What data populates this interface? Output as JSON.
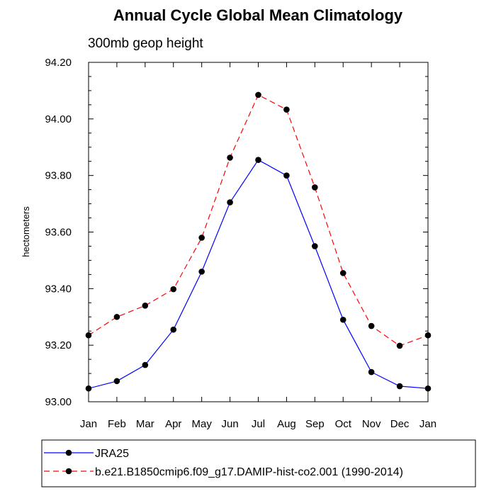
{
  "chart_data": {
    "type": "line",
    "title": "Annual Cycle Global Mean Climatology",
    "subtitle": "300mb geop height",
    "xlabel": "",
    "ylabel": "hectometers",
    "categories": [
      "Jan",
      "Feb",
      "Mar",
      "Apr",
      "May",
      "Jun",
      "Jul",
      "Aug",
      "Sep",
      "Oct",
      "Nov",
      "Dec",
      "Jan"
    ],
    "ylim": [
      93.0,
      94.2
    ],
    "yticks": [
      "93.00",
      "93.20",
      "93.40",
      "93.60",
      "93.80",
      "94.00",
      "94.20"
    ],
    "grid": false,
    "legend_position": "bottom",
    "series": [
      {
        "name": "JRA25",
        "color": "#0000ff",
        "line_style": "solid",
        "marker": "filled-circle",
        "values": [
          93.047,
          93.073,
          93.13,
          93.255,
          93.46,
          93.705,
          93.855,
          93.8,
          93.55,
          93.29,
          93.105,
          93.055,
          93.047
        ]
      },
      {
        "name": "b.e21.B1850cmip6.f09_g17.DAMIP-hist-co2.001 (1990-2014)",
        "color": "#ff0000",
        "line_style": "dashed",
        "marker": "filled-circle",
        "values": [
          93.235,
          93.3,
          93.34,
          93.398,
          93.58,
          93.863,
          94.085,
          94.033,
          93.758,
          93.455,
          93.268,
          93.198,
          93.235
        ]
      }
    ]
  }
}
